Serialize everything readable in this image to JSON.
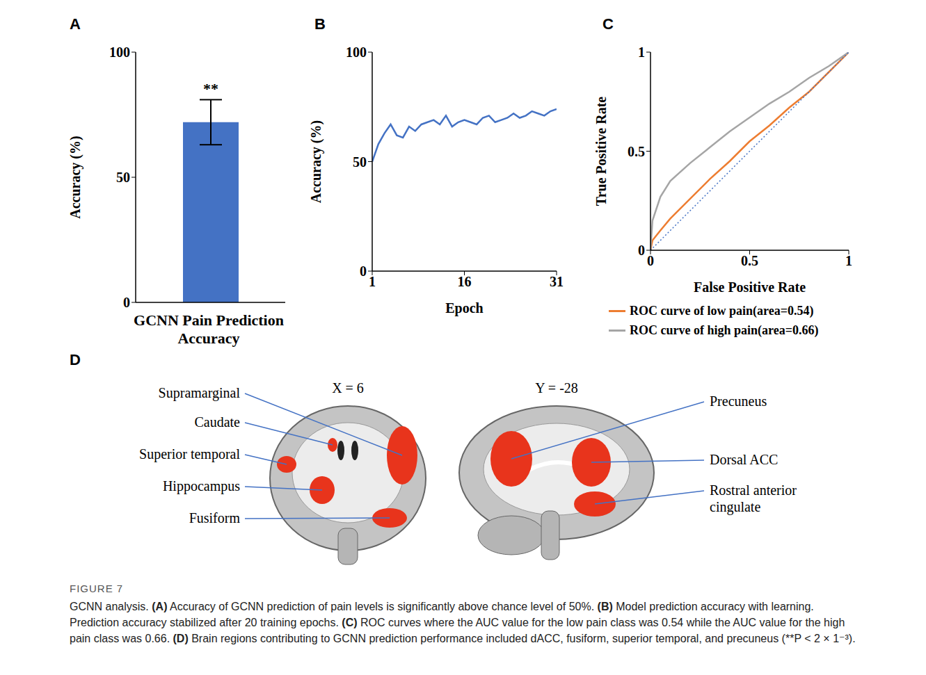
{
  "chart_data": [
    {
      "panel": "A",
      "type": "bar",
      "categories": [
        null
      ],
      "values": [
        72
      ],
      "errors": [
        9
      ],
      "color": "#4472c4",
      "annotation": "**",
      "x_label": "GCNN Pain Prediction Accuracy",
      "y_label": "Accuracy (%)",
      "ylim": [
        0,
        100
      ],
      "yticks": [
        0,
        50,
        100
      ],
      "grid": false
    },
    {
      "panel": "B",
      "type": "line",
      "x": [
        1,
        2,
        3,
        4,
        5,
        6,
        7,
        8,
        9,
        10,
        11,
        12,
        13,
        14,
        15,
        16,
        17,
        18,
        19,
        20,
        21,
        22,
        23,
        24,
        25,
        26,
        27,
        28,
        29,
        30,
        31
      ],
      "values": [
        50,
        58,
        63,
        67,
        62,
        61,
        66,
        64,
        67,
        68,
        69,
        67,
        71,
        66,
        68,
        69,
        68,
        67,
        70,
        71,
        68,
        69,
        70,
        72,
        70,
        71,
        73,
        72,
        71,
        73,
        74
      ],
      "color": "#4472c4",
      "x_label": "Epoch",
      "y_label": "Accuracy (%)",
      "xlim": [
        1,
        31
      ],
      "xticks": [
        1,
        16,
        31
      ],
      "ylim": [
        0,
        100
      ],
      "yticks": [
        0,
        50,
        100
      ],
      "grid": false
    },
    {
      "panel": "C",
      "type": "line",
      "x_label": "False Positive Rate",
      "y_label": "True Positive Rate",
      "xlim": [
        0,
        1
      ],
      "xticks": [
        0,
        0.5,
        1
      ],
      "ylim": [
        0,
        1
      ],
      "yticks": [
        0,
        0.5,
        1
      ],
      "legend": "bottom",
      "grid": false,
      "series": [
        {
          "name": "ROC curve of low pain(area=0.54)",
          "color": "#ed7d31",
          "x": [
            0,
            0.01,
            0.05,
            0.1,
            0.2,
            0.3,
            0.4,
            0.5,
            0.6,
            0.7,
            0.8,
            0.9,
            1
          ],
          "values": [
            0,
            0.05,
            0.1,
            0.16,
            0.26,
            0.36,
            0.45,
            0.55,
            0.63,
            0.72,
            0.8,
            0.9,
            1
          ]
        },
        {
          "name": "ROC curve of high pain(area=0.66)",
          "color": "#a5a5a5",
          "x": [
            0,
            0.01,
            0.05,
            0.1,
            0.2,
            0.3,
            0.4,
            0.5,
            0.6,
            0.7,
            0.8,
            0.9,
            1
          ],
          "values": [
            0,
            0.15,
            0.27,
            0.35,
            0.44,
            0.52,
            0.6,
            0.67,
            0.74,
            0.8,
            0.87,
            0.93,
            1
          ]
        },
        {
          "color": "#4472c4",
          "line_style": "dotted",
          "x": [
            0,
            1
          ],
          "values": [
            0,
            1
          ]
        }
      ]
    }
  ],
  "panel_d": {
    "panel": "D",
    "slices": [
      {
        "title": "X = 6",
        "labels": [
          "Supramarginal",
          "Caudate",
          "Superior temporal",
          "Hippocampus",
          "Fusiform"
        ]
      },
      {
        "title": "Y = -28",
        "labels": [
          "Precuneus",
          "Dorsal ACC",
          "Rostral anterior cingulate"
        ]
      }
    ]
  },
  "figure": {
    "label": "FIGURE 7",
    "caption": "GCNN analysis. (A) Accuracy of GCNN prediction of pain levels is significantly above chance level of 50%. (B) Model prediction accuracy with learning. Prediction accuracy stabilized after 20 training epochs. (C) ROC curves where the AUC value for the low pain class was 0.54 while the AUC value for the high pain class was 0.66. (D) Brain regions contributing to GCNN prediction performance included dACC, fusiform, superior temporal, and precuneus (**P < 2 × 1⁻³)."
  }
}
